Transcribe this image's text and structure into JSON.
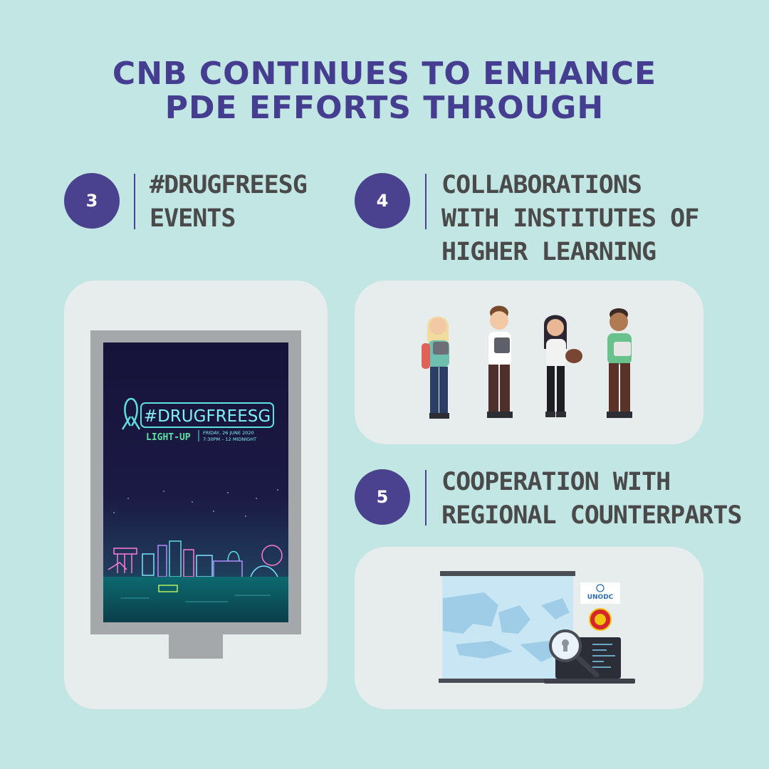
{
  "title": {
    "line1": "CNB CONTINUES TO ENHANCE",
    "line2": "PDE EFFORTS THROUGH"
  },
  "items": [
    {
      "number": "3",
      "lines": [
        "#DRUGFREESG",
        "EVENTS"
      ]
    },
    {
      "number": "4",
      "lines": [
        "COLLABORATIONS",
        "WITH INSTITUTES OF",
        "HIGHER LEARNING"
      ]
    },
    {
      "number": "5",
      "lines": [
        "COOPERATION WITH",
        "REGIONAL COUNTERPARTS"
      ]
    }
  ],
  "poster": {
    "hashtag": "#DRUGFREESG",
    "subtitle": "LIGHT-UP",
    "date": "FRIDAY, 26 JUNE 2020",
    "time": "7:30PM – 12 MIDNIGHT"
  },
  "logos": {
    "unodc": "UNODC"
  },
  "icons": {
    "ribbon": "awareness-ribbon-icon",
    "magnifier": "magnifying-glass-icon",
    "laptop": "laptop-icon",
    "map": "southeast-asia-map"
  },
  "colors": {
    "background": "#c2e6e4",
    "title": "#453d8f",
    "badge": "#4a428f",
    "heading": "#4a4a4a",
    "card": "#e7eced",
    "neon": "#5ee0e0"
  }
}
